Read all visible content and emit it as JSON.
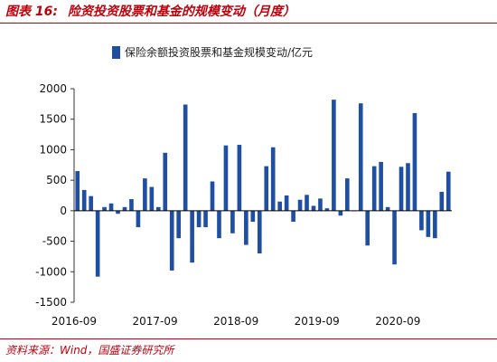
{
  "header": {
    "figure_label": "图表 16:",
    "title": "险资投资股票和基金的规模变动（月度）"
  },
  "footer": {
    "source": "资料来源：Wind，国盛证券研究所"
  },
  "chart_data": {
    "type": "bar",
    "series": [
      {
        "name": "保险余额投资股票和基金规模变动/亿元",
        "values": [
          650,
          340,
          240,
          -1080,
          60,
          120,
          -50,
          60,
          190,
          -270,
          530,
          390,
          60,
          950,
          -980,
          -450,
          1740,
          -850,
          -270,
          -270,
          480,
          -450,
          1070,
          -370,
          1080,
          -560,
          -180,
          -700,
          730,
          1040,
          150,
          250,
          -180,
          180,
          260,
          80,
          200,
          40,
          1820,
          -80,
          530,
          0,
          1760,
          -570,
          730,
          800,
          60,
          -880,
          720,
          780,
          1600,
          -320,
          -430,
          -450,
          310,
          640
        ]
      }
    ],
    "color": "#1f4fa2",
    "ylim": [
      -1500,
      2000
    ],
    "yticks": [
      -1500,
      -1000,
      -500,
      0,
      500,
      1000,
      1500,
      2000
    ],
    "xtick_labels": [
      {
        "index": 0,
        "label": "2016-09"
      },
      {
        "index": 12,
        "label": "2017-09"
      },
      {
        "index": 24,
        "label": "2018-09"
      },
      {
        "index": 36,
        "label": "2019-09"
      },
      {
        "index": 48,
        "label": "2020-09"
      }
    ],
    "grid": false,
    "legend_position": "top"
  }
}
